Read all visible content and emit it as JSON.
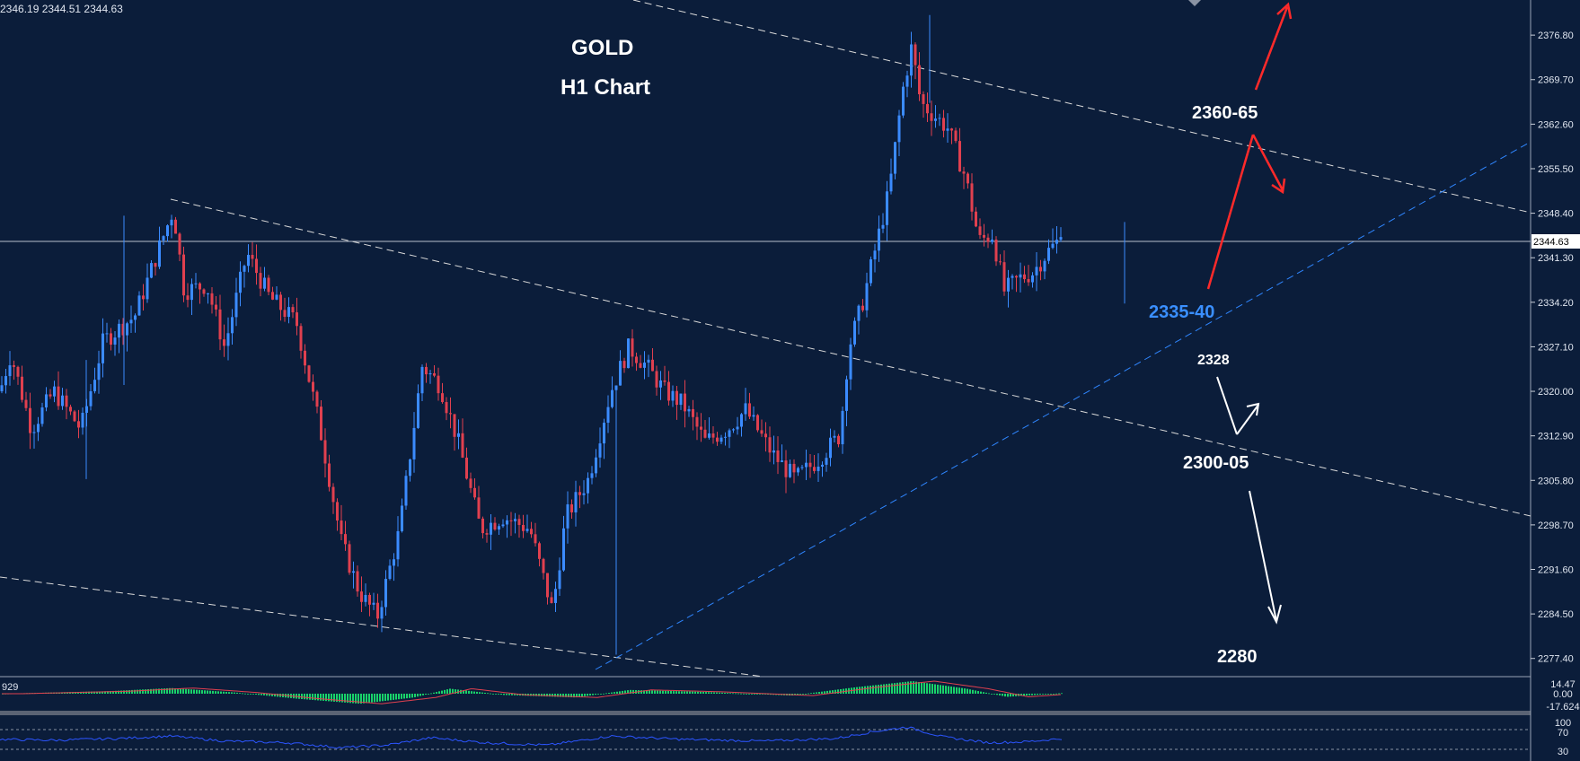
{
  "header": {
    "ohlc_readout": "2346.19 2344.51 2344.63"
  },
  "chart_data": {
    "type": "candlestick",
    "title": "GOLD",
    "subtitle": "H1 Chart",
    "price_axis": {
      "ticks": [
        "2376.80",
        "2369.70",
        "2362.60",
        "2355.50",
        "2348.40",
        "2341.30",
        "2334.20",
        "2327.10",
        "2320.00",
        "2312.90",
        "2305.80",
        "2298.70",
        "2291.60",
        "2284.50",
        "2277.40"
      ],
      "ylim": [
        2274.5,
        2382.4
      ]
    },
    "current_price": "2344.63",
    "annotations": {
      "resistance": "2360-65",
      "support": "2335-40",
      "level_2328": "2328",
      "level_2300": "2300-05",
      "target": "2280"
    },
    "colors": {
      "background": "#0b1d3a",
      "bull": "#3b8bff",
      "bear": "#e0404f",
      "trend_white": "#d8d8d8",
      "trend_blue": "#2f86ff",
      "arrow_red": "#ff2a2a",
      "arrow_white": "#ffffff",
      "support_text": "#3a8fff",
      "hist_green": "#19d36a",
      "rsi_line": "#2c55ff"
    },
    "waypoints": [
      [
        0,
        2320
      ],
      [
        12,
        2326
      ],
      [
        35,
        2314
      ],
      [
        60,
        2320
      ],
      [
        90,
        2314
      ],
      [
        115,
        2328
      ],
      [
        150,
        2332
      ],
      [
        180,
        2344
      ],
      [
        193,
        2349
      ],
      [
        205,
        2336
      ],
      [
        230,
        2337
      ],
      [
        250,
        2327
      ],
      [
        275,
        2342
      ],
      [
        300,
        2335
      ],
      [
        330,
        2331
      ],
      [
        355,
        2315
      ],
      [
        380,
        2296
      ],
      [
        400,
        2288
      ],
      [
        420,
        2284
      ],
      [
        445,
        2298
      ],
      [
        470,
        2324
      ],
      [
        490,
        2321
      ],
      [
        510,
        2312
      ],
      [
        535,
        2298
      ],
      [
        560,
        2300
      ],
      [
        590,
        2298
      ],
      [
        615,
        2285
      ],
      [
        630,
        2300
      ],
      [
        655,
        2306
      ],
      [
        680,
        2320
      ],
      [
        700,
        2327
      ],
      [
        720,
        2324
      ],
      [
        740,
        2320
      ],
      [
        760,
        2318
      ],
      [
        785,
        2312
      ],
      [
        810,
        2314
      ],
      [
        830,
        2317
      ],
      [
        860,
        2310
      ],
      [
        885,
        2306
      ],
      [
        910,
        2309
      ],
      [
        935,
        2313
      ],
      [
        945,
        2327
      ],
      [
        960,
        2334
      ],
      [
        975,
        2343
      ],
      [
        990,
        2352
      ],
      [
        1005,
        2368
      ],
      [
        1015,
        2375
      ],
      [
        1025,
        2366
      ],
      [
        1040,
        2364
      ],
      [
        1055,
        2362
      ],
      [
        1075,
        2354
      ],
      [
        1090,
        2344
      ],
      [
        1105,
        2345
      ],
      [
        1118,
        2336
      ],
      [
        1135,
        2338
      ],
      [
        1150,
        2339
      ],
      [
        1165,
        2342
      ],
      [
        1182,
        2344.6
      ]
    ],
    "macd": {
      "label": "929",
      "ticks": [
        "14.47",
        "0.00",
        "-17.624"
      ],
      "waypoints": [
        [
          0,
          0
        ],
        [
          120,
          0.2
        ],
        [
          190,
          0.45
        ],
        [
          260,
          0.1
        ],
        [
          330,
          -0.4
        ],
        [
          400,
          -0.8
        ],
        [
          460,
          -0.3
        ],
        [
          500,
          0.4
        ],
        [
          560,
          -0.1
        ],
        [
          640,
          -0.3
        ],
        [
          700,
          0.3
        ],
        [
          780,
          0.15
        ],
        [
          880,
          -0.15
        ],
        [
          950,
          0.5
        ],
        [
          1015,
          1
        ],
        [
          1075,
          0.4
        ],
        [
          1120,
          -0.25
        ],
        [
          1182,
          0.05
        ]
      ]
    },
    "rsi": {
      "ticks": [
        "100",
        "70",
        "30"
      ],
      "waypoints": [
        [
          0,
          48
        ],
        [
          60,
          46
        ],
        [
          130,
          50
        ],
        [
          190,
          56
        ],
        [
          250,
          44
        ],
        [
          320,
          40
        ],
        [
          380,
          28
        ],
        [
          430,
          34
        ],
        [
          480,
          52
        ],
        [
          540,
          40
        ],
        [
          610,
          34
        ],
        [
          680,
          56
        ],
        [
          760,
          48
        ],
        [
          850,
          44
        ],
        [
          930,
          50
        ],
        [
          970,
          66
        ],
        [
          1010,
          78
        ],
        [
          1050,
          54
        ],
        [
          1100,
          40
        ],
        [
          1140,
          42
        ],
        [
          1182,
          50
        ]
      ]
    }
  }
}
